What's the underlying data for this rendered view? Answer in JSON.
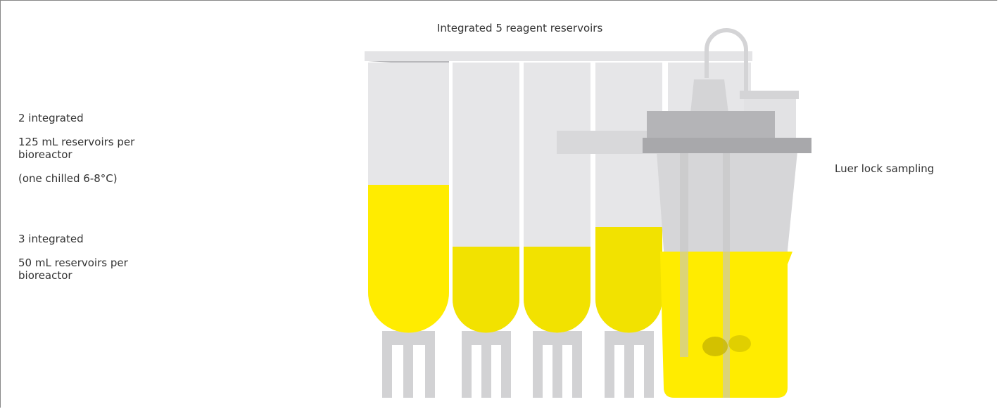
{
  "title": "Integrated 5 reagent reservoirs",
  "left_labels": [
    {
      "lines": [
        "2 integrated",
        "125 mL reservoirs per bioreactor",
        "(one chilled 6-8°C)"
      ]
    },
    {
      "lines": [
        "3 integrated",
        "50 mL reservoirs per bioreactor"
      ]
    }
  ],
  "right_label": "Luer lock sampling"
}
